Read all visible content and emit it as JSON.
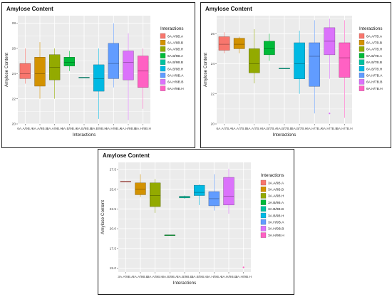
{
  "chart_data": [
    {
      "type": "boxplot",
      "title": "Amylose Content",
      "xlabel": "Interactions",
      "ylabel": "Amylose Content",
      "ylim": [
        20,
        28.6
      ],
      "yticks": [
        20,
        22,
        24,
        26,
        28
      ],
      "grid": true,
      "legend_title": "Interactions",
      "legend_position": "right",
      "categories": [
        "6A.A/9B.A",
        "6A.A/9B.B",
        "6A.A/9B.H",
        "6A.B/9B.A",
        "6A.B/9B.B",
        "6A.B/9B.H",
        "6A.H/9B.A",
        "6A.H/9B.B",
        "6A.H/9B.H"
      ],
      "colors": [
        "#F8766D",
        "#D39200",
        "#93AA00",
        "#00BA38",
        "#00C19F",
        "#00B9E3",
        "#619CFF",
        "#DB72FB",
        "#FF61C3"
      ],
      "boxes": [
        {
          "min": 23.2,
          "q1": 23.6,
          "median": 24.0,
          "q3": 24.8,
          "max": 26.0
        },
        {
          "min": 22.0,
          "q1": 23.0,
          "median": 24.0,
          "q3": 25.3,
          "max": 26.5
        },
        {
          "min": 22.0,
          "q1": 23.5,
          "median": 24.5,
          "q3": 25.5,
          "max": 26.0
        },
        {
          "min": 24.2,
          "q1": 24.6,
          "median": 24.9,
          "q3": 25.3,
          "max": 25.8
        },
        {
          "min": 23.7,
          "q1": 23.7,
          "median": 23.7,
          "q3": 23.7,
          "max": 23.7
        },
        {
          "min": 20.4,
          "q1": 22.6,
          "median": 23.6,
          "q3": 24.7,
          "max": 26.0
        },
        {
          "min": 22.9,
          "q1": 23.6,
          "median": 24.8,
          "q3": 26.4,
          "max": 28.0
        },
        {
          "min": 20.3,
          "q1": 23.5,
          "median": 24.9,
          "q3": 25.8,
          "max": 27.2
        },
        {
          "min": 21.2,
          "q1": 22.9,
          "median": 24.2,
          "q3": 25.4,
          "max": 26.0
        }
      ],
      "outliers": []
    },
    {
      "type": "boxplot",
      "title": "Amylose Content",
      "xlabel": "Interactions",
      "ylabel": "Amylose Content",
      "ylim": [
        20,
        27.2
      ],
      "yticks": [
        20,
        22,
        24,
        26
      ],
      "grid": true,
      "legend_title": "Interactions",
      "legend_position": "right",
      "categories": [
        "6A.A/7B.A",
        "6A.A/7B.B",
        "6A.A/7B.H",
        "6A.B/7B.A",
        "6A.B/7B.B",
        "6A.B/7B.H",
        "6A.H/7B.A",
        "6A.H/7B.B",
        "6A.H/7B.H"
      ],
      "colors": [
        "#F8766D",
        "#D39200",
        "#93AA00",
        "#00BA38",
        "#00C19F",
        "#00B9E3",
        "#619CFF",
        "#DB72FB",
        "#FF61C3"
      ],
      "boxes": [
        {
          "min": 24.7,
          "q1": 24.9,
          "median": 25.3,
          "q3": 25.8,
          "max": 26.1
        },
        {
          "min": 24.7,
          "q1": 25.0,
          "median": 25.3,
          "q3": 25.7,
          "max": 25.8
        },
        {
          "min": 22.7,
          "q1": 23.4,
          "median": 24.0,
          "q3": 25.0,
          "max": 26.3
        },
        {
          "min": 24.2,
          "q1": 24.6,
          "median": 25.0,
          "q3": 25.5,
          "max": 26.0
        },
        {
          "min": 23.7,
          "q1": 23.7,
          "median": 23.7,
          "q3": 23.7,
          "max": 23.7
        },
        {
          "min": 22.0,
          "q1": 23.0,
          "median": 24.0,
          "q3": 25.4,
          "max": 26.2
        },
        {
          "min": 20.7,
          "q1": 22.5,
          "median": 24.5,
          "q3": 25.4,
          "max": 26.9
        },
        {
          "min": 23.0,
          "q1": 24.6,
          "median": 25.5,
          "q3": 26.4,
          "max": 27.0
        },
        {
          "min": 20.4,
          "q1": 23.1,
          "median": 24.4,
          "q3": 25.4,
          "max": 26.9
        }
      ],
      "outliers": [
        {
          "category": "6A.H/7B.B",
          "value": 20.7
        }
      ]
    },
    {
      "type": "boxplot",
      "title": "Amylose Content",
      "xlabel": "Interactions",
      "ylabel": "Amylose Content",
      "ylim": [
        14.5,
        28.4
      ],
      "yticks": [
        15.0,
        17.5,
        20.0,
        22.5,
        25.0,
        27.5
      ],
      "grid": true,
      "legend_title": "Interactions",
      "legend_position": "right",
      "categories": [
        "3A.A/9B.A",
        "3A.A/9B.B",
        "3A.A/9B.H",
        "3A.B/9B.A",
        "3A.B/9B.B",
        "3A.B/9B.H",
        "3A.H/9B.A",
        "3A.H/9B.B",
        "3A.H/9B.H"
      ],
      "colors": [
        "#F8766D",
        "#D39200",
        "#93AA00",
        "#00BA38",
        "#00C19F",
        "#00B9E3",
        "#619CFF",
        "#DB72FB",
        "#FF61C3"
      ],
      "boxes": [
        {
          "min": 26.0,
          "q1": 26.0,
          "median": 26.0,
          "q3": 26.0,
          "max": 26.0
        },
        {
          "min": 24.0,
          "q1": 24.3,
          "median": 25.0,
          "q3": 25.8,
          "max": 26.9
        },
        {
          "min": 22.0,
          "q1": 22.8,
          "median": 24.2,
          "q3": 25.8,
          "max": 26.3
        },
        {
          "min": 19.2,
          "q1": 19.2,
          "median": 19.2,
          "q3": 19.2,
          "max": 19.2
        },
        {
          "min": 23.8,
          "q1": 23.9,
          "median": 24.0,
          "q3": 24.1,
          "max": 24.2
        },
        {
          "min": 23.0,
          "q1": 24.2,
          "median": 24.6,
          "q3": 25.5,
          "max": 25.6
        },
        {
          "min": 22.3,
          "q1": 22.9,
          "median": 23.8,
          "q3": 24.7,
          "max": 26.9
        },
        {
          "min": 21.9,
          "q1": 23.0,
          "median": 24.1,
          "q3": 26.5,
          "max": 27.6
        },
        {
          "min": null,
          "q1": null,
          "median": null,
          "q3": null,
          "max": null
        }
      ],
      "outliers": [
        {
          "category": "3A.H/9B.H",
          "value": 15.1
        }
      ]
    }
  ]
}
